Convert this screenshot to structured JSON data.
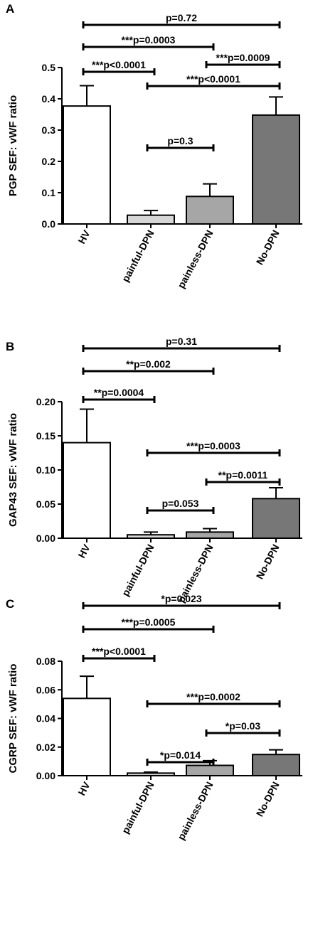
{
  "chart_data": [
    {
      "type": "bar",
      "panel_label": "A",
      "ylabel": "PGP SEF: vWF ratio",
      "ylim": [
        0,
        0.5
      ],
      "yticks": [
        "0.0",
        "0.1",
        "0.2",
        "0.3",
        "0.4",
        "0.5"
      ],
      "categories": [
        "HV",
        "painful-DPN",
        "painless-DPN",
        "No-DPN"
      ],
      "values": [
        0.377,
        0.028,
        0.088,
        0.348
      ],
      "errors": [
        0.065,
        0.015,
        0.04,
        0.058
      ],
      "bar_colors": [
        "#ffffff",
        "#d6d6d6",
        "#a6a6a6",
        "#777777"
      ],
      "comparisons": [
        {
          "from": 0,
          "to": 3,
          "label": "p=0.72"
        },
        {
          "from": 0,
          "to": 2,
          "label": "***p=0.0003"
        },
        {
          "from": 2,
          "to": 3,
          "label": "***p=0.0009"
        },
        {
          "from": 0,
          "to": 1,
          "label": "***p<0.0001"
        },
        {
          "from": 1,
          "to": 3,
          "label": "***p<0.0001"
        },
        {
          "from": 1,
          "to": 2,
          "label": "p=0.3"
        }
      ]
    },
    {
      "type": "bar",
      "panel_label": "B",
      "ylabel": "GAP43 SEF: vWF ratio",
      "ylim": [
        0,
        0.2
      ],
      "yticks": [
        "0.00",
        "0.05",
        "0.10",
        "0.15",
        "0.20"
      ],
      "categories": [
        "HV",
        "painful-DPN",
        "painless-DPN",
        "No-DPN"
      ],
      "values": [
        0.14,
        0.005,
        0.009,
        0.058
      ],
      "errors": [
        0.049,
        0.004,
        0.005,
        0.016
      ],
      "bar_colors": [
        "#ffffff",
        "#d6d6d6",
        "#a6a6a6",
        "#777777"
      ],
      "comparisons": [
        {
          "from": 0,
          "to": 3,
          "label": "p=0.31"
        },
        {
          "from": 0,
          "to": 2,
          "label": "**p=0.002"
        },
        {
          "from": 0,
          "to": 1,
          "label": "**p=0.0004"
        },
        {
          "from": 1,
          "to": 3,
          "label": "***p=0.0003"
        },
        {
          "from": 2,
          "to": 3,
          "label": "**p=0.0011"
        },
        {
          "from": 1,
          "to": 2,
          "label": "p=0.053"
        }
      ]
    },
    {
      "type": "bar",
      "panel_label": "C",
      "ylabel": "CGRP SEF: vWF ratio",
      "ylim": [
        0,
        0.08
      ],
      "yticks": [
        "0.00",
        "0.02",
        "0.04",
        "0.06",
        "0.08"
      ],
      "categories": [
        "HV",
        "painful-DPN",
        "painless-DPN",
        "No-DPN"
      ],
      "values": [
        0.054,
        0.0018,
        0.0072,
        0.0148
      ],
      "errors": [
        0.0155,
        0.0007,
        0.0033,
        0.0033
      ],
      "bar_colors": [
        "#ffffff",
        "#d6d6d6",
        "#a6a6a6",
        "#777777"
      ],
      "comparisons": [
        {
          "from": 0,
          "to": 3,
          "label": "*p=0.023"
        },
        {
          "from": 0,
          "to": 2,
          "label": "***p=0.0005"
        },
        {
          "from": 0,
          "to": 1,
          "label": "***p<0.0001"
        },
        {
          "from": 1,
          "to": 3,
          "label": "***p=0.0002"
        },
        {
          "from": 2,
          "to": 3,
          "label": "*p=0.03"
        },
        {
          "from": 1,
          "to": 2,
          "label": "*p=0.014"
        }
      ]
    }
  ]
}
